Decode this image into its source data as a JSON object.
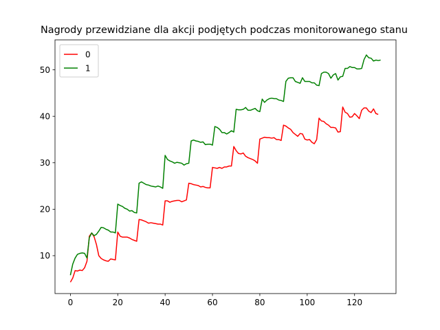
{
  "chart_data": {
    "type": "line",
    "title": "Nagrody przewidziane dla akcji podjętych podczas monitorowanego stanu",
    "xlabel": "",
    "ylabel": "",
    "xlim": [
      -6.5,
      137.5
    ],
    "ylim": [
      1.85,
      56.45
    ],
    "xticks": [
      0,
      20,
      40,
      60,
      80,
      100,
      120
    ],
    "yticks": [
      10,
      20,
      30,
      40,
      50
    ],
    "grid": false,
    "legend_position": "upper left",
    "series": [
      {
        "name": "0",
        "color": "#ff0000",
        "points": [
          [
            0,
            4.3
          ],
          [
            1,
            5.2
          ],
          [
            2,
            6.8
          ],
          [
            3,
            6.7
          ],
          [
            4,
            6.9
          ],
          [
            5,
            6.8
          ],
          [
            6,
            7.4
          ],
          [
            7,
            8.8
          ],
          [
            8,
            14.2
          ],
          [
            9,
            14.9
          ],
          [
            10,
            14.1
          ],
          [
            11,
            12.4
          ],
          [
            12,
            10.0
          ],
          [
            13,
            9.4
          ],
          [
            14,
            9.1
          ],
          [
            15,
            8.9
          ],
          [
            16,
            8.8
          ],
          [
            17,
            9.3
          ],
          [
            18,
            9.2
          ],
          [
            19,
            9.1
          ],
          [
            20,
            15.1
          ],
          [
            21,
            14.2
          ],
          [
            22,
            14.0
          ],
          [
            23,
            14.0
          ],
          [
            24,
            14.0
          ],
          [
            25,
            13.8
          ],
          [
            26,
            13.5
          ],
          [
            27,
            13.3
          ],
          [
            28,
            13.1
          ],
          [
            29,
            17.8
          ],
          [
            30,
            17.7
          ],
          [
            31,
            17.5
          ],
          [
            32,
            17.3
          ],
          [
            33,
            17.0
          ],
          [
            34,
            17.1
          ],
          [
            35,
            17.0
          ],
          [
            36,
            16.9
          ],
          [
            37,
            16.8
          ],
          [
            38,
            16.8
          ],
          [
            39,
            16.6
          ],
          [
            40,
            21.8
          ],
          [
            41,
            21.8
          ],
          [
            42,
            21.5
          ],
          [
            43,
            21.7
          ],
          [
            44,
            21.8
          ],
          [
            45,
            21.9
          ],
          [
            46,
            21.9
          ],
          [
            47,
            21.6
          ],
          [
            48,
            21.8
          ],
          [
            49,
            22.0
          ],
          [
            50,
            25.6
          ],
          [
            51,
            25.5
          ],
          [
            52,
            25.3
          ],
          [
            53,
            25.2
          ],
          [
            54,
            25.1
          ],
          [
            55,
            24.8
          ],
          [
            56,
            24.9
          ],
          [
            57,
            24.7
          ],
          [
            58,
            24.6
          ],
          [
            59,
            24.6
          ],
          [
            60,
            29.0
          ],
          [
            61,
            28.9
          ],
          [
            62,
            28.8
          ],
          [
            63,
            29.0
          ],
          [
            64,
            28.8
          ],
          [
            65,
            29.1
          ],
          [
            66,
            29.1
          ],
          [
            67,
            29.3
          ],
          [
            68,
            29.3
          ],
          [
            69,
            33.5
          ],
          [
            70,
            32.6
          ],
          [
            71,
            32.0
          ],
          [
            72,
            31.9
          ],
          [
            73,
            32.1
          ],
          [
            74,
            31.4
          ],
          [
            75,
            31.1
          ],
          [
            76,
            30.9
          ],
          [
            77,
            30.7
          ],
          [
            78,
            30.4
          ],
          [
            79,
            29.9
          ],
          [
            80,
            35.1
          ],
          [
            81,
            35.3
          ],
          [
            82,
            35.5
          ],
          [
            83,
            35.4
          ],
          [
            84,
            35.4
          ],
          [
            85,
            35.3
          ],
          [
            86,
            35.4
          ],
          [
            87,
            35.0
          ],
          [
            88,
            35.0
          ],
          [
            89,
            34.8
          ],
          [
            90,
            38.1
          ],
          [
            91,
            37.9
          ],
          [
            92,
            37.5
          ],
          [
            93,
            37.2
          ],
          [
            94,
            36.5
          ],
          [
            95,
            36.1
          ],
          [
            96,
            35.7
          ],
          [
            97,
            36.3
          ],
          [
            98,
            36.2
          ],
          [
            99,
            35.1
          ],
          [
            100,
            34.9
          ],
          [
            101,
            35.0
          ],
          [
            102,
            34.4
          ],
          [
            103,
            34.1
          ],
          [
            104,
            35.0
          ],
          [
            105,
            39.6
          ],
          [
            106,
            39.0
          ],
          [
            107,
            38.9
          ],
          [
            108,
            38.4
          ],
          [
            109,
            38.1
          ],
          [
            110,
            37.6
          ],
          [
            111,
            37.6
          ],
          [
            112,
            37.5
          ],
          [
            113,
            36.6
          ],
          [
            114,
            36.7
          ],
          [
            115,
            42.0
          ],
          [
            116,
            40.9
          ],
          [
            117,
            40.6
          ],
          [
            118,
            39.8
          ],
          [
            119,
            39.9
          ],
          [
            120,
            40.6
          ],
          [
            121,
            40.1
          ],
          [
            122,
            39.5
          ],
          [
            123,
            41.3
          ],
          [
            124,
            41.8
          ],
          [
            125,
            41.8
          ],
          [
            126,
            41.1
          ],
          [
            127,
            40.8
          ],
          [
            128,
            41.6
          ],
          [
            129,
            40.6
          ],
          [
            130,
            40.4
          ]
        ]
      },
      {
        "name": "1",
        "color": "#008000",
        "points": [
          [
            0,
            5.8
          ],
          [
            1,
            8.2
          ],
          [
            2,
            9.5
          ],
          [
            3,
            10.3
          ],
          [
            4,
            10.5
          ],
          [
            5,
            10.6
          ],
          [
            6,
            10.5
          ],
          [
            7,
            9.5
          ],
          [
            8,
            13.9
          ],
          [
            9,
            14.9
          ],
          [
            10,
            14.3
          ],
          [
            11,
            14.6
          ],
          [
            12,
            15.3
          ],
          [
            13,
            16.1
          ],
          [
            14,
            16.0
          ],
          [
            15,
            15.7
          ],
          [
            16,
            15.5
          ],
          [
            17,
            15.1
          ],
          [
            18,
            15.1
          ],
          [
            19,
            14.9
          ],
          [
            20,
            21.1
          ],
          [
            21,
            20.8
          ],
          [
            22,
            20.6
          ],
          [
            23,
            20.2
          ],
          [
            24,
            20.0
          ],
          [
            25,
            19.6
          ],
          [
            26,
            19.7
          ],
          [
            27,
            19.3
          ],
          [
            28,
            19.2
          ],
          [
            29,
            25.6
          ],
          [
            30,
            25.9
          ],
          [
            31,
            25.6
          ],
          [
            32,
            25.3
          ],
          [
            33,
            25.2
          ],
          [
            34,
            25.0
          ],
          [
            35,
            24.9
          ],
          [
            36,
            24.8
          ],
          [
            37,
            25.0
          ],
          [
            38,
            24.8
          ],
          [
            39,
            24.5
          ],
          [
            40,
            31.6
          ],
          [
            41,
            30.7
          ],
          [
            42,
            30.4
          ],
          [
            43,
            30.2
          ],
          [
            44,
            29.9
          ],
          [
            45,
            30.1
          ],
          [
            46,
            30.0
          ],
          [
            47,
            29.9
          ],
          [
            48,
            29.5
          ],
          [
            49,
            29.8
          ],
          [
            50,
            29.9
          ],
          [
            51,
            34.7
          ],
          [
            52,
            34.9
          ],
          [
            53,
            34.7
          ],
          [
            54,
            34.6
          ],
          [
            55,
            34.4
          ],
          [
            56,
            34.5
          ],
          [
            57,
            33.9
          ],
          [
            58,
            34.0
          ],
          [
            59,
            34.0
          ],
          [
            60,
            33.8
          ],
          [
            61,
            37.8
          ],
          [
            62,
            37.6
          ],
          [
            63,
            37.2
          ],
          [
            64,
            36.5
          ],
          [
            65,
            36.5
          ],
          [
            66,
            36.2
          ],
          [
            67,
            36.5
          ],
          [
            68,
            36.9
          ],
          [
            69,
            36.6
          ],
          [
            70,
            41.5
          ],
          [
            71,
            41.4
          ],
          [
            72,
            41.4
          ],
          [
            73,
            41.5
          ],
          [
            74,
            41.9
          ],
          [
            75,
            41.3
          ],
          [
            76,
            41.3
          ],
          [
            77,
            41.5
          ],
          [
            78,
            41.7
          ],
          [
            79,
            41.2
          ],
          [
            80,
            41.0
          ],
          [
            81,
            43.7
          ],
          [
            82,
            43.0
          ],
          [
            83,
            43.5
          ],
          [
            84,
            43.8
          ],
          [
            85,
            43.9
          ],
          [
            86,
            43.8
          ],
          [
            87,
            43.8
          ],
          [
            88,
            43.5
          ],
          [
            89,
            43.4
          ],
          [
            90,
            43.2
          ],
          [
            91,
            47.5
          ],
          [
            92,
            48.2
          ],
          [
            93,
            48.3
          ],
          [
            94,
            48.3
          ],
          [
            95,
            47.5
          ],
          [
            96,
            47.3
          ],
          [
            97,
            47.1
          ],
          [
            98,
            48.3
          ],
          [
            99,
            47.5
          ],
          [
            100,
            47.5
          ],
          [
            101,
            47.5
          ],
          [
            102,
            47.2
          ],
          [
            103,
            47.2
          ],
          [
            104,
            46.7
          ],
          [
            105,
            46.6
          ],
          [
            106,
            49.2
          ],
          [
            107,
            49.5
          ],
          [
            108,
            49.5
          ],
          [
            109,
            49.2
          ],
          [
            110,
            48.2
          ],
          [
            111,
            48.9
          ],
          [
            112,
            49.2
          ],
          [
            113,
            47.8
          ],
          [
            114,
            48.5
          ],
          [
            115,
            48.6
          ],
          [
            116,
            50.3
          ],
          [
            117,
            50.3
          ],
          [
            118,
            50.7
          ],
          [
            119,
            50.5
          ],
          [
            120,
            50.5
          ],
          [
            121,
            50.2
          ],
          [
            122,
            50.2
          ],
          [
            123,
            50.3
          ],
          [
            124,
            52.2
          ],
          [
            125,
            53.2
          ],
          [
            126,
            52.6
          ],
          [
            127,
            52.5
          ],
          [
            128,
            51.9
          ],
          [
            129,
            52.1
          ],
          [
            130,
            52.0
          ],
          [
            131,
            52.1
          ]
        ]
      }
    ]
  }
}
